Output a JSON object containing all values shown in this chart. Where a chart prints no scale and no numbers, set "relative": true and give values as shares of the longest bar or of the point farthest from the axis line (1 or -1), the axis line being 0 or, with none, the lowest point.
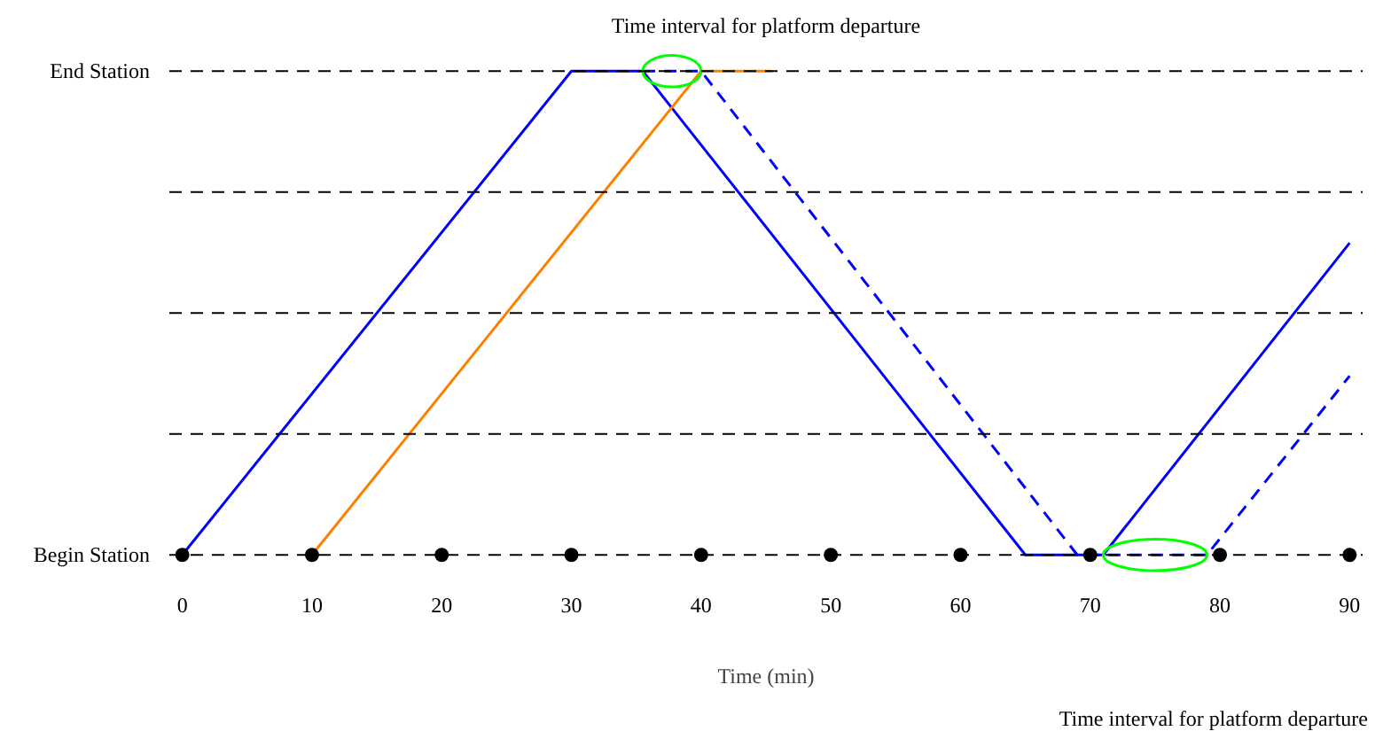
{
  "chart_data": {
    "type": "line",
    "xlabel": "Time (min)",
    "relative": true,
    "xlim": [
      -1,
      91
    ],
    "xticks": [
      0,
      10,
      20,
      30,
      40,
      50,
      60,
      70,
      80,
      90
    ],
    "series": [
      {
        "color": "#0000ff",
        "x": [
          0,
          30,
          35.5,
          65,
          71,
          90
        ],
        "values": [
          0,
          1,
          1,
          0,
          0,
          0.645
        ],
        "line_style": "solid"
      },
      {
        "color": "#0000ff",
        "x": [
          35.5,
          40,
          69,
          79,
          90
        ],
        "values": [
          1,
          1,
          0,
          0,
          0.37
        ],
        "line_style": "dashed"
      },
      {
        "color": "#ff8000",
        "x": [
          10,
          40,
          45.5
        ],
        "values": [
          0,
          1,
          1
        ],
        "line_style": "solid"
      },
      {
        "type": "scatter",
        "color": "#000000",
        "marker": "circle",
        "x": [
          0,
          10,
          20,
          30,
          40,
          50,
          60,
          70,
          80,
          90
        ],
        "values": [
          0,
          0,
          0,
          0,
          0,
          0,
          0,
          0,
          0,
          0
        ]
      }
    ],
    "ref_lines": [
      {
        "axis": "y",
        "value": 0,
        "label": "Begin Station",
        "color": "#000000",
        "line_style": "dashed"
      },
      {
        "axis": "y",
        "value": 0.25,
        "label": null,
        "color": "#000000",
        "line_style": "dashed"
      },
      {
        "axis": "y",
        "value": 0.5,
        "label": null,
        "color": "#000000",
        "line_style": "dashed"
      },
      {
        "axis": "y",
        "value": 0.75,
        "label": null,
        "color": "#000000",
        "line_style": "dashed"
      },
      {
        "axis": "y",
        "value": 1,
        "label": "End Station",
        "color": "#000000",
        "line_style": "dashed"
      }
    ],
    "annotations": [
      "Time interval for platform departure",
      "Time interval for platform departure"
    ]
  }
}
